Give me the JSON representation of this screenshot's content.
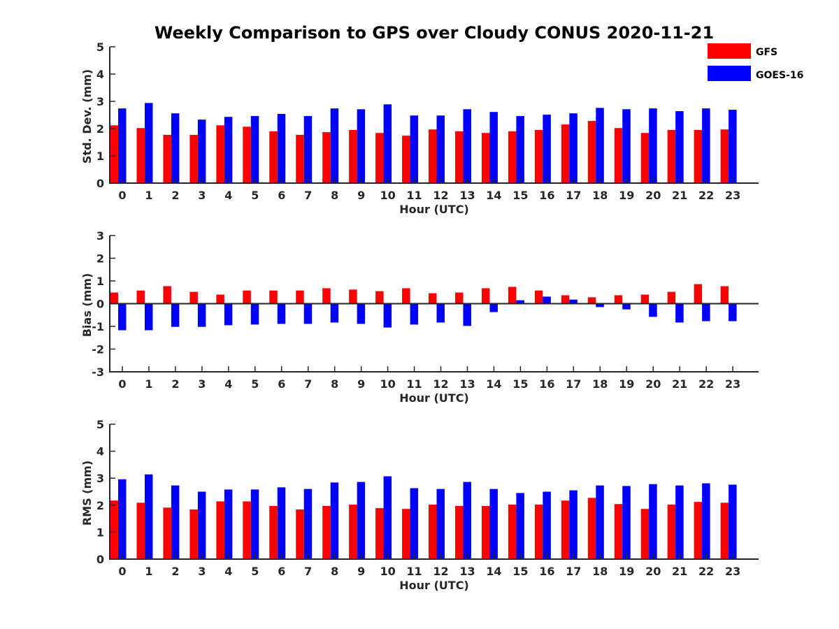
{
  "figure": {
    "title": "Weekly Comparison to GPS over Cloudy CONUS 2020-11-21"
  },
  "legend": {
    "placement": "top-right",
    "items": [
      {
        "label": "GFS",
        "color": "#ff0000"
      },
      {
        "label": "GOES-16",
        "color": "#0000ff"
      }
    ]
  },
  "chart_data": [
    {
      "type": "bar",
      "title": "Weekly Comparison to GPS over Cloudy CONUS 2020-11-21",
      "xlabel": "Hour (UTC)",
      "ylabel": "Std. Dev. (mm)",
      "ylim": [
        0,
        5
      ],
      "yticks": [
        "0",
        "1",
        "2",
        "3",
        "4",
        "5"
      ],
      "grid": false,
      "categories": [
        "0",
        "1",
        "2",
        "3",
        "4",
        "5",
        "6",
        "7",
        "8",
        "9",
        "10",
        "11",
        "12",
        "13",
        "14",
        "15",
        "16",
        "17",
        "18",
        "19",
        "20",
        "21",
        "22",
        "23"
      ],
      "series": [
        {
          "name": "GFS",
          "color": "#ff0000",
          "values": [
            2.12,
            2.02,
            1.77,
            1.77,
            2.12,
            2.07,
            1.9,
            1.77,
            1.87,
            1.95,
            1.84,
            1.74,
            1.97,
            1.9,
            1.84,
            1.9,
            1.95,
            2.15,
            2.28,
            2.02,
            1.84,
            1.95,
            1.95,
            1.97
          ]
        },
        {
          "name": "GOES-16",
          "color": "#0000ff",
          "values": [
            2.74,
            2.94,
            2.56,
            2.33,
            2.43,
            2.46,
            2.54,
            2.46,
            2.74,
            2.71,
            2.89,
            2.48,
            2.48,
            2.71,
            2.61,
            2.46,
            2.51,
            2.56,
            2.76,
            2.71,
            2.74,
            2.64,
            2.74,
            2.69
          ]
        }
      ]
    },
    {
      "type": "bar",
      "xlabel": "Hour (UTC)",
      "ylabel": "Bias (mm)",
      "ylim": [
        -3,
        3
      ],
      "yticks": [
        "-3",
        "-2",
        "-1",
        "0",
        "1",
        "2",
        "3"
      ],
      "grid": false,
      "zero_line": true,
      "categories": [
        "0",
        "1",
        "2",
        "3",
        "4",
        "5",
        "6",
        "7",
        "8",
        "9",
        "10",
        "11",
        "12",
        "13",
        "14",
        "15",
        "16",
        "17",
        "18",
        "19",
        "20",
        "21",
        "22",
        "23"
      ],
      "series": [
        {
          "name": "GFS",
          "color": "#ff0000",
          "values": [
            0.49,
            0.58,
            0.77,
            0.52,
            0.4,
            0.58,
            0.58,
            0.58,
            0.68,
            0.62,
            0.55,
            0.68,
            0.46,
            0.49,
            0.68,
            0.74,
            0.58,
            0.37,
            0.28,
            0.37,
            0.4,
            0.52,
            0.86,
            0.77
          ]
        },
        {
          "name": "GOES-16",
          "color": "#0000ff",
          "values": [
            -1.17,
            -1.17,
            -1.02,
            -1.02,
            -0.95,
            -0.92,
            -0.89,
            -0.89,
            -0.83,
            -0.89,
            -1.05,
            -0.92,
            -0.83,
            -0.98,
            -0.37,
            0.15,
            0.31,
            0.18,
            -0.15,
            -0.25,
            -0.58,
            -0.83,
            -0.77,
            -0.77
          ]
        }
      ]
    },
    {
      "type": "bar",
      "xlabel": "Hour (UTC)",
      "ylabel": "RMS (mm)",
      "ylim": [
        0,
        5
      ],
      "yticks": [
        "0",
        "1",
        "2",
        "3",
        "4",
        "5"
      ],
      "grid": false,
      "categories": [
        "0",
        "1",
        "2",
        "3",
        "4",
        "5",
        "6",
        "7",
        "8",
        "9",
        "10",
        "11",
        "12",
        "13",
        "14",
        "15",
        "16",
        "17",
        "18",
        "19",
        "20",
        "21",
        "22",
        "23"
      ],
      "series": [
        {
          "name": "GFS",
          "color": "#ff0000",
          "values": [
            2.17,
            2.09,
            1.91,
            1.84,
            2.14,
            2.14,
            1.97,
            1.84,
            1.97,
            2.02,
            1.89,
            1.86,
            2.02,
            1.97,
            1.97,
            2.02,
            2.02,
            2.17,
            2.27,
            2.04,
            1.86,
            2.02,
            2.12,
            2.09
          ]
        },
        {
          "name": "GOES-16",
          "color": "#0000ff",
          "values": [
            2.96,
            3.14,
            2.73,
            2.5,
            2.58,
            2.58,
            2.66,
            2.6,
            2.84,
            2.86,
            3.07,
            2.63,
            2.6,
            2.86,
            2.6,
            2.45,
            2.5,
            2.55,
            2.73,
            2.71,
            2.78,
            2.73,
            2.81,
            2.76
          ]
        }
      ]
    }
  ]
}
